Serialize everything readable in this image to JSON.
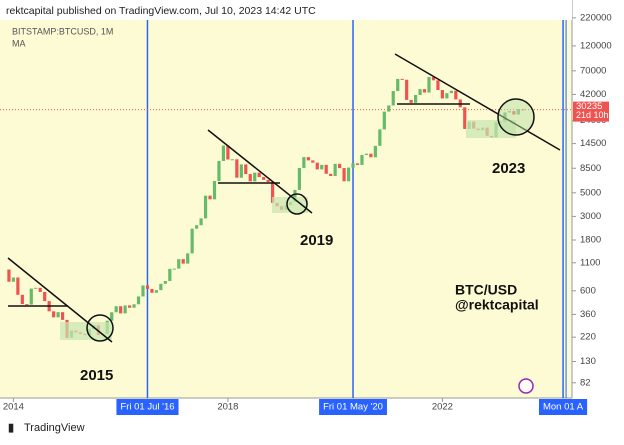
{
  "header": {
    "text": "rektcapital published on TradingView.com, Jul 10, 2023 14:42 UTC"
  },
  "footer": {
    "brand": "TradingView"
  },
  "chart_data": {
    "type": "candlestick",
    "title": "BITSTAMP:BTCUSD, 1M",
    "indicator": "MA",
    "log_scale": true,
    "up_color": "#66bb6a",
    "down_color": "#ef5350",
    "x": [
      "2013-12",
      "2014-01",
      "2014-02",
      "2014-03",
      "2014-04",
      "2014-05",
      "2014-06",
      "2014-07",
      "2014-08",
      "2014-09",
      "2014-10",
      "2014-11",
      "2014-12",
      "2015-01",
      "2015-02",
      "2015-03",
      "2015-04",
      "2015-05",
      "2015-06",
      "2015-07",
      "2015-08",
      "2015-09",
      "2015-10",
      "2015-11",
      "2015-12",
      "2016-01",
      "2016-02",
      "2016-03",
      "2016-04",
      "2016-05",
      "2016-06",
      "2016-07",
      "2016-08",
      "2016-09",
      "2016-10",
      "2016-11",
      "2016-12",
      "2017-01",
      "2017-02",
      "2017-03",
      "2017-04",
      "2017-05",
      "2017-06",
      "2017-07",
      "2017-08",
      "2017-09",
      "2017-10",
      "2017-11",
      "2017-12",
      "2018-01",
      "2018-02",
      "2018-03",
      "2018-04",
      "2018-05",
      "2018-06",
      "2018-07",
      "2018-08",
      "2018-09",
      "2018-10",
      "2018-11",
      "2018-12",
      "2019-01",
      "2019-02",
      "2019-03",
      "2019-04",
      "2019-05",
      "2019-06",
      "2019-07",
      "2019-08",
      "2019-09",
      "2019-10",
      "2019-11",
      "2019-12",
      "2020-01",
      "2020-02",
      "2020-03",
      "2020-04",
      "2020-05",
      "2020-06",
      "2020-07",
      "2020-08",
      "2020-09",
      "2020-10",
      "2020-11",
      "2020-12",
      "2021-01",
      "2021-02",
      "2021-03",
      "2021-04",
      "2021-05",
      "2021-06",
      "2021-07",
      "2021-08",
      "2021-09",
      "2021-10",
      "2021-11",
      "2021-12",
      "2022-01",
      "2022-02",
      "2022-03",
      "2022-04",
      "2022-05",
      "2022-06",
      "2022-07",
      "2022-08",
      "2022-09",
      "2022-10",
      "2022-11",
      "2022-12",
      "2023-01",
      "2023-02",
      "2023-03",
      "2023-04",
      "2023-05",
      "2023-06",
      "2023-07"
    ],
    "open": [
      950,
      730,
      800,
      550,
      450,
      445,
      630,
      640,
      585,
      480,
      385,
      338,
      378,
      320,
      217,
      254,
      244,
      236,
      230,
      263,
      284,
      230,
      236,
      314,
      377,
      430,
      368,
      437,
      416,
      448,
      531,
      673,
      624,
      575,
      609,
      698,
      742,
      964,
      970,
      1190,
      1080,
      1348,
      2300,
      2480,
      2875,
      4700,
      4340,
      6450,
      9950,
      13880,
      10270,
      10330,
      6930,
      9240,
      7500,
      6400,
      7730,
      7030,
      6620,
      6320,
      4020,
      3740,
      3460,
      3820,
      4100,
      5320,
      8560,
      10820,
      10080,
      9600,
      8300,
      9150,
      7540,
      7190,
      9350,
      8540,
      6420,
      8630,
      9450,
      9140,
      11330,
      11650,
      10780,
      13800,
      19700,
      28990,
      33100,
      45200,
      58800,
      57700,
      37300,
      35000,
      41500,
      47100,
      43800,
      61300,
      57000,
      46200,
      38500,
      43200,
      45500,
      37700,
      31800,
      19900,
      23300,
      20050,
      19400,
      20500,
      17150,
      16550,
      23100,
      23150,
      28450,
      29250,
      27200,
      30450
    ],
    "close": [
      730,
      800,
      550,
      450,
      445,
      630,
      640,
      585,
      480,
      385,
      338,
      378,
      320,
      217,
      254,
      244,
      236,
      230,
      263,
      284,
      230,
      236,
      314,
      377,
      430,
      368,
      437,
      416,
      448,
      531,
      673,
      624,
      575,
      609,
      698,
      742,
      964,
      970,
      1190,
      1080,
      1348,
      2300,
      2480,
      2875,
      4700,
      4340,
      6450,
      9950,
      13880,
      10270,
      10330,
      6930,
      9240,
      7500,
      6400,
      7730,
      7030,
      6620,
      6320,
      4020,
      3740,
      3460,
      3820,
      4100,
      5320,
      8560,
      10820,
      10080,
      9600,
      8300,
      9150,
      7540,
      7190,
      9350,
      8540,
      6420,
      8630,
      9450,
      9140,
      11330,
      11650,
      10780,
      13800,
      19700,
      28990,
      33100,
      45200,
      58800,
      57700,
      37300,
      35000,
      41500,
      47100,
      43800,
      61300,
      57000,
      46200,
      38500,
      43200,
      45500,
      37700,
      31800,
      19900,
      23300,
      20050,
      19400,
      20500,
      17150,
      16550,
      23100,
      23150,
      28450,
      29250,
      27200,
      30450,
      30235
    ],
    "ylim": [
      59,
      324000
    ],
    "yticks": [
      220000,
      120000,
      70000,
      42000,
      24000,
      14500,
      8500,
      5000,
      3000,
      1800,
      1100,
      600,
      360,
      220,
      130,
      82
    ],
    "xlim": [
      "2013-10",
      "2024-06"
    ],
    "xticks": [
      {
        "value": "2014-01",
        "label": "2014"
      },
      {
        "value": "2018-01",
        "label": "2018"
      },
      {
        "value": "2022-01",
        "label": "2022"
      }
    ],
    "markers": [
      {
        "x": "2016-07",
        "label": "Fri 01 Jul '16"
      },
      {
        "x": "2020-05",
        "label": "Fri 01 May '20"
      },
      {
        "x": "2024-04",
        "label": "Mon 01 A"
      }
    ],
    "last_price": 30235,
    "countdown": "21d 10h",
    "annotations": [
      "2015",
      "2019",
      "2023",
      "BTC/USD",
      "@rektcapital"
    ]
  }
}
